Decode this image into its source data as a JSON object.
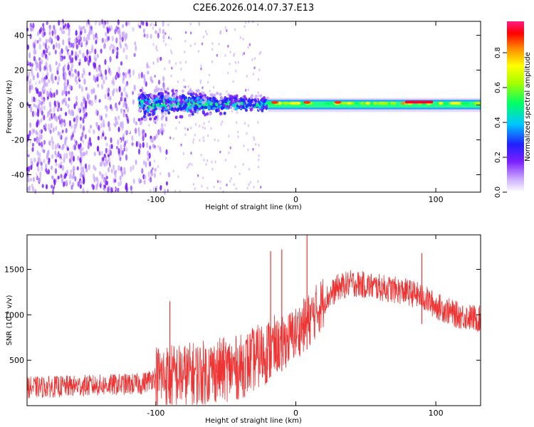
{
  "title": "C2E6.2026.014.07.37.E13",
  "chart_data": [
    {
      "type": "heatmap",
      "xlabel": "Height of straight line (km)",
      "ylabel": "Frequency (Hz)",
      "xlim": [
        -192,
        132
      ],
      "ylim": [
        -50,
        48
      ],
      "xticks": [
        -100,
        0,
        100
      ],
      "yticks": [
        -40,
        -20,
        0,
        20,
        40
      ],
      "colorbar": {
        "label": "Normalized spectral amplitude",
        "range": [
          0,
          0.98
        ],
        "ticks": [
          0.0,
          0.2,
          0.4,
          0.6,
          0.8
        ],
        "colormap": [
          "#ffffff",
          "#b388ff",
          "#6a00ff",
          "#0000ff",
          "#00ccff",
          "#00ff66",
          "#ffff00",
          "#ff8800",
          "#ff0000",
          "#ff1493"
        ]
      },
      "regions": [
        {
          "x_range": [
            -192,
            -100
          ],
          "f_range": [
            -50,
            48
          ],
          "amplitude": 0.15,
          "description": "broadband noise"
        },
        {
          "x_range": [
            -112,
            -20
          ],
          "f_range": [
            -10,
            10
          ],
          "amplitude": 0.4
        },
        {
          "x_range": [
            -20,
            132
          ],
          "f_range": [
            -3,
            3
          ],
          "amplitude": 0.55
        },
        {
          "x_range": [
            78,
            98
          ],
          "f_range": [
            0,
            3
          ],
          "amplitude": 0.95
        }
      ]
    },
    {
      "type": "line",
      "xlabel": "Height of straight line (km)",
      "ylabel": "SNR (10 * v/v)",
      "xlim": [
        -192,
        132
      ],
      "ylim": [
        0,
        1880
      ],
      "xticks": [
        -100,
        0,
        100
      ],
      "yticks": [
        500,
        1000,
        1500
      ],
      "series": [
        {
          "name": "SNR",
          "color": "#ee3333",
          "x": [
            -192,
            -150,
            -110,
            -100,
            -80,
            -60,
            -40,
            -20,
            -10,
            0,
            10,
            20,
            30,
            40,
            60,
            80,
            90,
            100,
            115,
            132
          ],
          "values": [
            200,
            220,
            240,
            320,
            330,
            380,
            420,
            600,
            680,
            800,
            950,
            1150,
            1300,
            1350,
            1300,
            1250,
            1200,
            1100,
            1000,
            950
          ]
        }
      ],
      "spikes": [
        {
          "x": -90,
          "value": 1150
        },
        {
          "x": -18,
          "value": 1700
        },
        {
          "x": -10,
          "value": 1720
        },
        {
          "x": 8,
          "value": 1880
        },
        {
          "x": 90,
          "value": 1680
        }
      ]
    }
  ]
}
